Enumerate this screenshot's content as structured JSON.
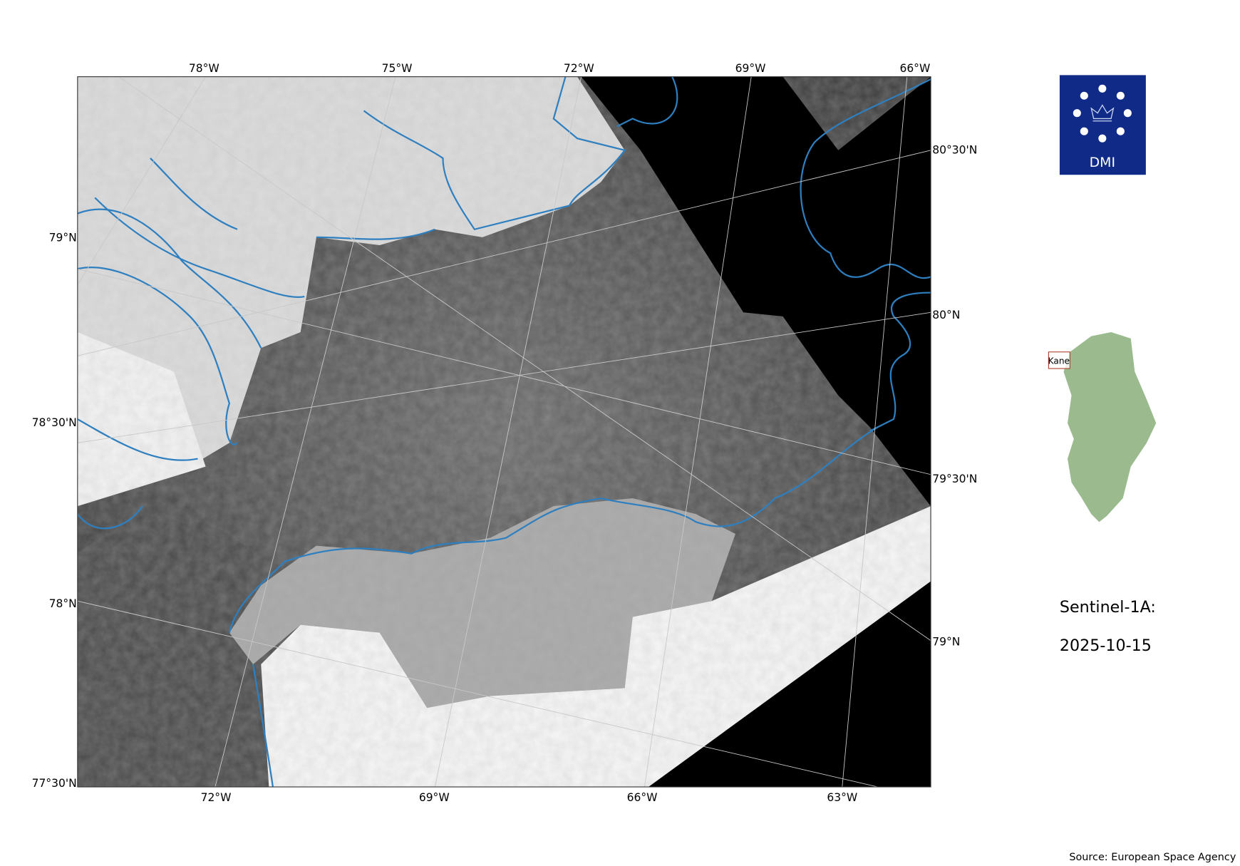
{
  "map": {
    "top_ticks": [
      "78°W",
      "75°W",
      "72°W",
      "69°W",
      "66°W"
    ],
    "bottom_ticks": [
      "72°W",
      "69°W",
      "66°W",
      "63°W"
    ],
    "left_ticks": [
      "79°N",
      "78°30'N",
      "78°N",
      "77°30'N"
    ],
    "right_ticks": [
      "80°30'N",
      "80°N",
      "79°30'N",
      "79°N"
    ],
    "coastline_color": "#2e7fc0"
  },
  "logo": {
    "text": "DMI",
    "color": "#0f2a87"
  },
  "inset": {
    "label": "Kane",
    "land_color": "#9bbb8f"
  },
  "info": {
    "satellite": "Sentinel-1A:",
    "date": "2025-10-15"
  },
  "source": "Source: European Space Agency"
}
